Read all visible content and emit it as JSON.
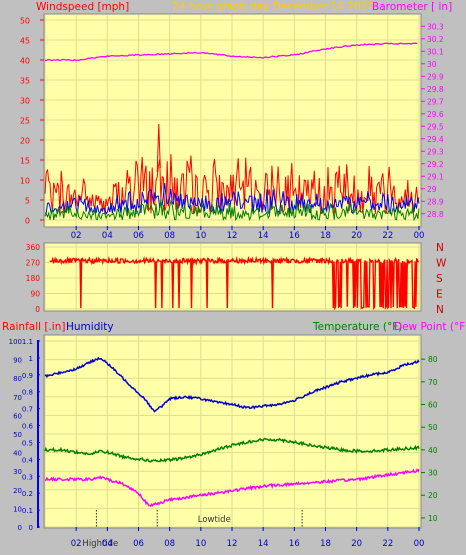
{
  "header": {
    "windspeed_label": "Windspeed [mph]",
    "subtitle": "24 hour graph day   December 14 2022",
    "barometer_label": "Barometer [ in]"
  },
  "compass": [
    "N",
    "W",
    "S",
    "E",
    "N"
  ],
  "bottom_labels": {
    "rainfall": "Rainfall [.in]",
    "humidity": "Humidity",
    "temperature": "Temperature (°F)",
    "dewpoint": "Dew Point (°F)"
  },
  "tides": {
    "high": "Hightide",
    "low": "Lowtide",
    "high_hour": 3.3,
    "low_hour": 10.7,
    "marker_hours": [
      3.3,
      7.2,
      16.5
    ]
  },
  "colors": {
    "plot_bg": "#ffffa8",
    "frame": "#c0c0c0",
    "windspeed": "#ff0000",
    "average": "#0000ff",
    "wind_low": "#008000",
    "barometer": "#ff00ff",
    "direction": "#ff0000",
    "humidity": "#0000cc",
    "temperature": "#008000",
    "dewpoint": "#ff00ff",
    "rain_axis": "#0000ff",
    "header_orange": "#ffcc00"
  },
  "chart_data": [
    {
      "type": "line",
      "name": "wind_barometer",
      "x_ticks": [
        "02",
        "04",
        "06",
        "08",
        "10",
        "12",
        "14",
        "16",
        "18",
        "20",
        "22",
        "00"
      ],
      "left_ticks": [
        "0",
        "5",
        "10",
        "15",
        "20",
        "25",
        "30",
        "35",
        "40",
        "45",
        "50"
      ],
      "right_ticks": [
        "28.8",
        "28.9",
        "29",
        "29.1",
        "29.2",
        "29.3",
        "29.4",
        "29.5",
        "29.6",
        "29.7",
        "29.8",
        "29.9",
        "30",
        "30.1",
        "30.2",
        "30.3"
      ],
      "ylim_left": [
        0,
        50
      ],
      "ylim_right": [
        28.75,
        30.35
      ],
      "x_range": [
        0,
        24
      ],
      "grid": true,
      "barometer": [
        [
          0,
          30.03
        ],
        [
          2,
          30.03
        ],
        [
          4,
          30.06
        ],
        [
          6,
          30.07
        ],
        [
          8,
          30.08
        ],
        [
          10,
          30.09
        ],
        [
          12,
          30.06
        ],
        [
          14,
          30.05
        ],
        [
          16,
          30.07
        ],
        [
          18,
          30.12
        ],
        [
          20,
          30.15
        ],
        [
          22,
          30.16
        ],
        [
          24,
          30.16
        ]
      ],
      "gust_envelope": [
        [
          0,
          10
        ],
        [
          2,
          10
        ],
        [
          3,
          8
        ],
        [
          4,
          5
        ],
        [
          4.5,
          8
        ],
        [
          5,
          12
        ],
        [
          6,
          14
        ],
        [
          7,
          16
        ],
        [
          8,
          14
        ],
        [
          10,
          12
        ],
        [
          12,
          12
        ],
        [
          14,
          12
        ],
        [
          16,
          11
        ],
        [
          18,
          11
        ],
        [
          20,
          12
        ],
        [
          22,
          11
        ],
        [
          24,
          10
        ]
      ],
      "average_envelope": [
        [
          0,
          5
        ],
        [
          2,
          5
        ],
        [
          3,
          4
        ],
        [
          4,
          3
        ],
        [
          5,
          6
        ],
        [
          6,
          7
        ],
        [
          7,
          8
        ],
        [
          8,
          7
        ],
        [
          10,
          6
        ],
        [
          12,
          6
        ],
        [
          14,
          6
        ],
        [
          16,
          6
        ],
        [
          18,
          6
        ],
        [
          20,
          6
        ],
        [
          22,
          5
        ],
        [
          24,
          5
        ]
      ],
      "gust_peak": [
        7.3,
        24
      ]
    },
    {
      "type": "line",
      "name": "wind_direction",
      "left_ticks": [
        "0",
        "90",
        "180",
        "270",
        "360"
      ],
      "ylim": [
        0,
        360
      ],
      "x_ticks": [
        "02",
        "04",
        "06",
        "08",
        "10",
        "12",
        "14",
        "16",
        "18",
        "20",
        "22",
        "00"
      ],
      "base_direction": 280,
      "drops_to_zero_hours": [
        2.3,
        7.1,
        7.5,
        8.2,
        8.6,
        9.4,
        10.4,
        11.7,
        14.6,
        18.6,
        19.8,
        20.3,
        20.7,
        21.1,
        21.7,
        22.2,
        22.6,
        23.2,
        23.7
      ],
      "scatter_zero_from_hour": 18.5
    },
    {
      "type": "line",
      "name": "humidity_temperature",
      "x_ticks": [
        "02",
        "04",
        "06",
        "08",
        "10",
        "12",
        "14",
        "16",
        "18",
        "20",
        "22",
        "00"
      ],
      "left_ticks": [
        "0",
        "10",
        "20",
        "30",
        "40",
        "50",
        "60",
        "70",
        "80",
        "90",
        "100"
      ],
      "rain_ticks": [
        "0",
        "0.1",
        "0.2",
        "0.3",
        "0.4",
        "0.5",
        "0.6",
        "0.7",
        "0.8",
        "0.9",
        "1",
        "1.1"
      ],
      "right_ticks": [
        "10",
        "20",
        "30",
        "40",
        "50",
        "60",
        "70",
        "80"
      ],
      "ylim_left": [
        0,
        100
      ],
      "ylim_right": [
        6,
        88
      ],
      "series": [
        {
          "name": "Humidity",
          "axis": "left",
          "values": [
            [
              0,
              81
            ],
            [
              1,
              83
            ],
            [
              2,
              85
            ],
            [
              3,
              89
            ],
            [
              3.5,
              91
            ],
            [
              4,
              88
            ],
            [
              5,
              80
            ],
            [
              6,
              72
            ],
            [
              6.5,
              68
            ],
            [
              7,
              62
            ],
            [
              7.5,
              65
            ],
            [
              8,
              69
            ],
            [
              9,
              70
            ],
            [
              10,
              69
            ],
            [
              11,
              67
            ],
            [
              12,
              66
            ],
            [
              13,
              64
            ],
            [
              14,
              65
            ],
            [
              15,
              66
            ],
            [
              16,
              68
            ],
            [
              17,
              72
            ],
            [
              18,
              75
            ],
            [
              19,
              78
            ],
            [
              20,
              80
            ],
            [
              21,
              82
            ],
            [
              22,
              83
            ],
            [
              23,
              87
            ],
            [
              24,
              89
            ]
          ]
        },
        {
          "name": "Temperature (°F)",
          "axis": "right",
          "values": [
            [
              0,
              40
            ],
            [
              1,
              40
            ],
            [
              2,
              39
            ],
            [
              3,
              38
            ],
            [
              3.5,
              39.5
            ],
            [
              4,
              39
            ],
            [
              5,
              37
            ],
            [
              6,
              36
            ],
            [
              7,
              35
            ],
            [
              8,
              35.5
            ],
            [
              9,
              36.5
            ],
            [
              10,
              38
            ],
            [
              11,
              40
            ],
            [
              12,
              42
            ],
            [
              13,
              43.5
            ],
            [
              14,
              44.5
            ],
            [
              15,
              44.5
            ],
            [
              16,
              43.5
            ],
            [
              17,
              42
            ],
            [
              18,
              41
            ],
            [
              19,
              40
            ],
            [
              20,
              39.5
            ],
            [
              21,
              39.5
            ],
            [
              22,
              40
            ],
            [
              23,
              40.5
            ],
            [
              24,
              41
            ]
          ]
        },
        {
          "name": "Dew Point (°F)",
          "axis": "right",
          "values": [
            [
              0,
              27
            ],
            [
              1,
              27
            ],
            [
              2,
              27
            ],
            [
              3,
              27
            ],
            [
              3.5,
              28
            ],
            [
              4,
              27
            ],
            [
              5,
              25
            ],
            [
              6,
              21
            ],
            [
              6.7,
              15
            ],
            [
              7,
              16
            ],
            [
              8,
              18
            ],
            [
              9,
              19
            ],
            [
              10,
              20
            ],
            [
              11,
              21
            ],
            [
              12,
              22
            ],
            [
              13,
              23
            ],
            [
              14,
              24
            ],
            [
              15,
              24.5
            ],
            [
              16,
              25
            ],
            [
              17,
              25.5
            ],
            [
              18,
              26
            ],
            [
              19,
              26.5
            ],
            [
              20,
              27
            ],
            [
              21,
              28
            ],
            [
              22,
              29
            ],
            [
              23,
              30
            ],
            [
              24,
              31
            ]
          ]
        }
      ]
    }
  ]
}
